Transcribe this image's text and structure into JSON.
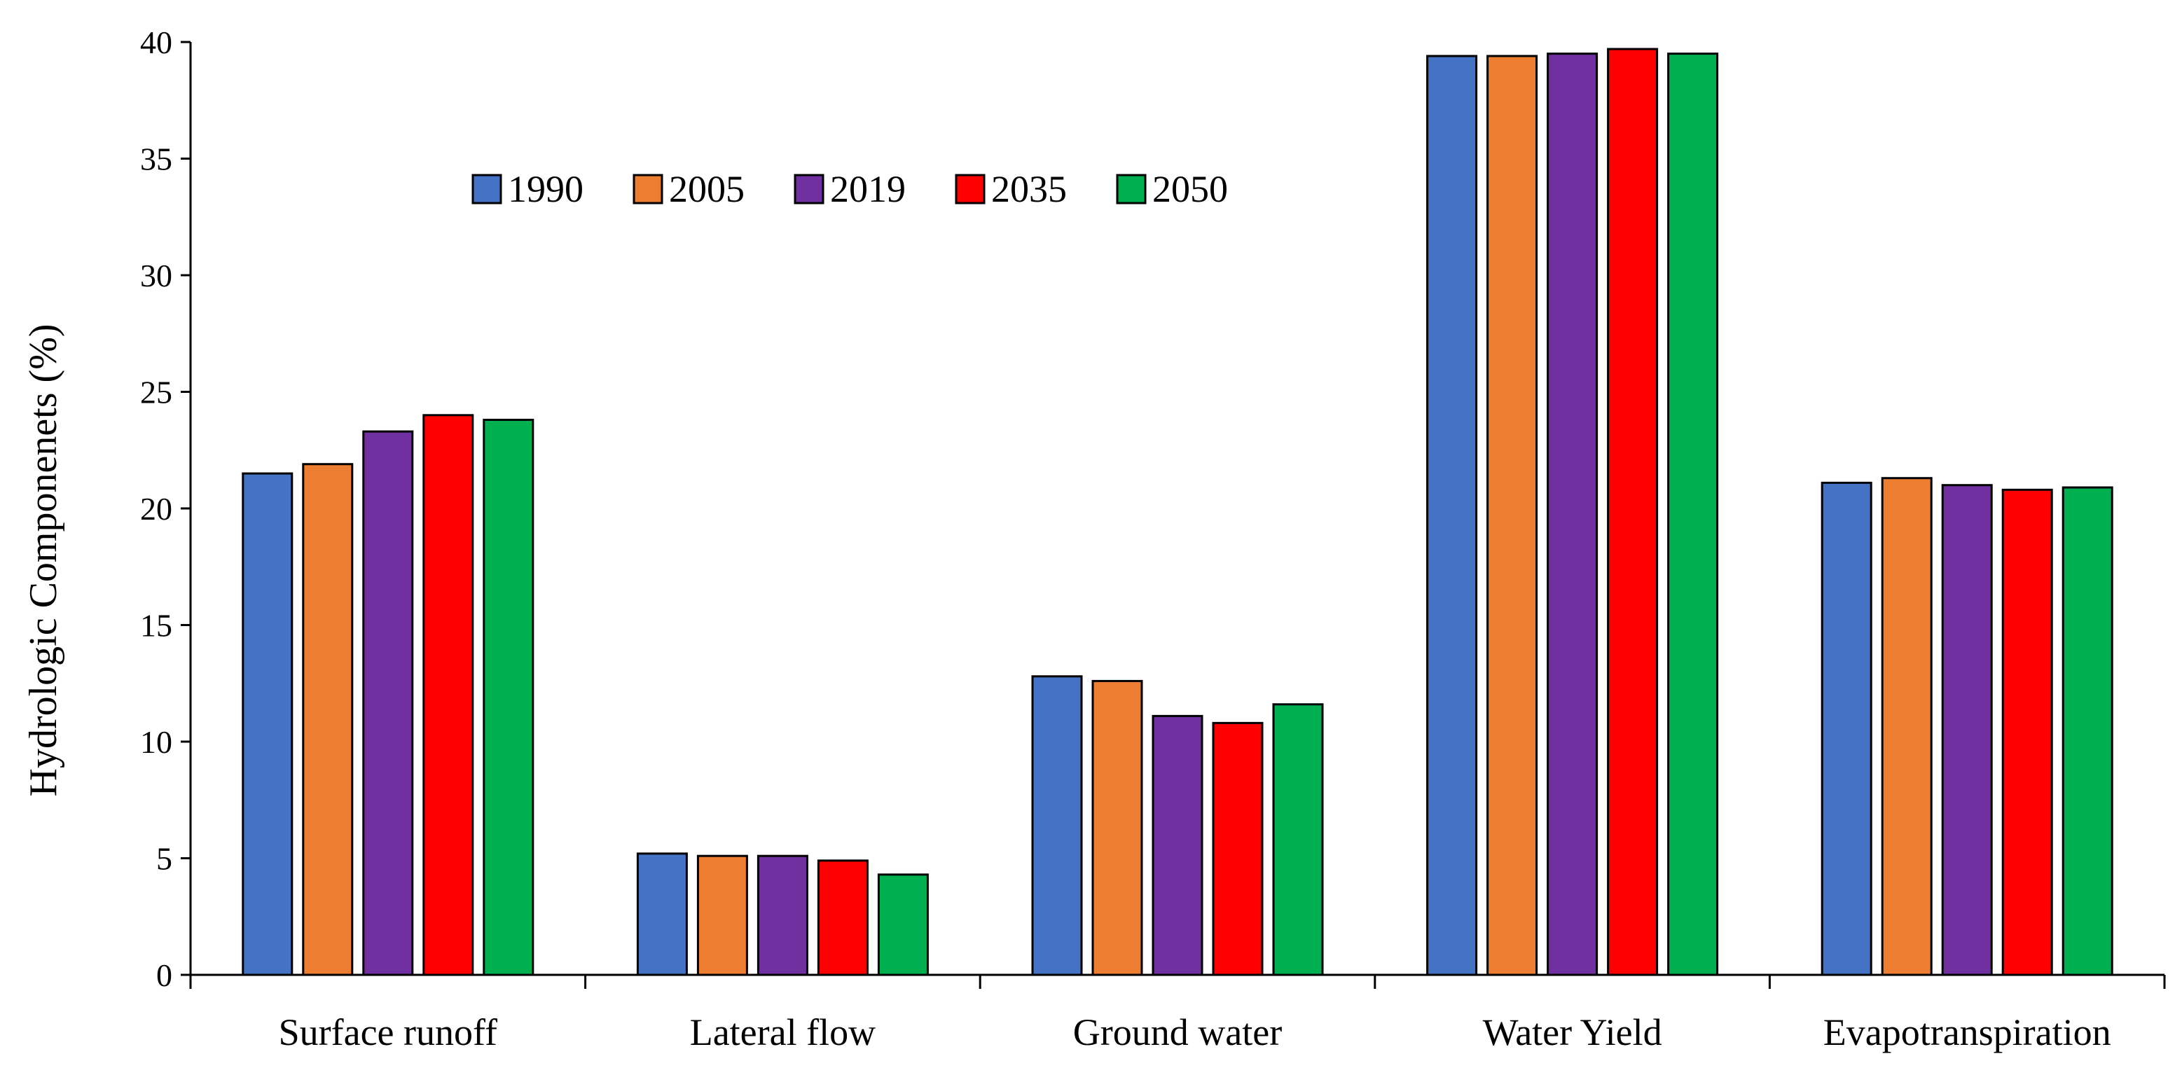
{
  "chart_data": {
    "type": "bar",
    "title": "",
    "xlabel": "",
    "ylabel": "Hydrologic Componenets (%)",
    "ylim": [
      0,
      40
    ],
    "yticks": [
      0,
      5,
      10,
      15,
      20,
      25,
      30,
      35,
      40
    ],
    "grid": false,
    "legend_position": "top-center",
    "categories": [
      "Surface runoff",
      "Lateral flow",
      "Ground water",
      "Water Yield",
      "Evapotranspiration"
    ],
    "series": [
      {
        "name": "1990",
        "color": "#4472C4",
        "values": [
          21.5,
          5.2,
          12.8,
          39.4,
          21.1
        ]
      },
      {
        "name": "2005",
        "color": "#ED7D31",
        "values": [
          21.9,
          5.1,
          12.6,
          39.4,
          21.3
        ]
      },
      {
        "name": "2019",
        "color": "#7030A0",
        "values": [
          23.3,
          5.1,
          11.1,
          39.5,
          21.0
        ]
      },
      {
        "name": "2035",
        "color": "#FF0000",
        "values": [
          24.0,
          4.9,
          10.8,
          39.7,
          20.8
        ]
      },
      {
        "name": "2050",
        "color": "#00B050",
        "values": [
          23.8,
          4.3,
          11.6,
          39.5,
          20.9
        ]
      }
    ]
  }
}
